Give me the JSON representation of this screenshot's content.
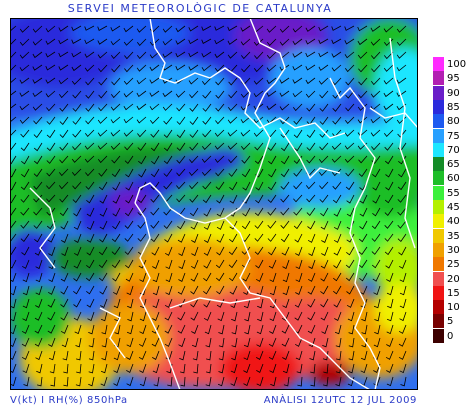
{
  "header": {
    "title": "SERVEI METEOROLÒGIC DE CATALUNYA"
  },
  "footer": {
    "left": "V(kt) I RH(%) 850hPa",
    "right": "ANÀLISI 12UTC 12 JUL 2009"
  },
  "legend": {
    "levels": [
      {
        "label": "100",
        "color": "#ff2bff"
      },
      {
        "label": "95",
        "color": "#b21fb2"
      },
      {
        "label": "90",
        "color": "#6a1ec8"
      },
      {
        "label": "85",
        "color": "#2b2bdc"
      },
      {
        "label": "80",
        "color": "#1e5af0"
      },
      {
        "label": "75",
        "color": "#28a0ff"
      },
      {
        "label": "70",
        "color": "#1ee6ff"
      },
      {
        "label": "65",
        "color": "#148c28"
      },
      {
        "label": "60",
        "color": "#1ebe28"
      },
      {
        "label": "55",
        "color": "#3cf03c"
      },
      {
        "label": "45",
        "color": "#b4f000"
      },
      {
        "label": "40",
        "color": "#f0f000"
      },
      {
        "label": "35",
        "color": "#f0c800"
      },
      {
        "label": "30",
        "color": "#f0a000"
      },
      {
        "label": "25",
        "color": "#f07800"
      },
      {
        "label": "20",
        "color": "#f05050"
      },
      {
        "label": "15",
        "color": "#f01414"
      },
      {
        "label": "10",
        "color": "#b40000"
      },
      {
        "label": "5",
        "color": "#780000"
      },
      {
        "label": "0",
        "color": "#3c0000"
      }
    ]
  }
}
